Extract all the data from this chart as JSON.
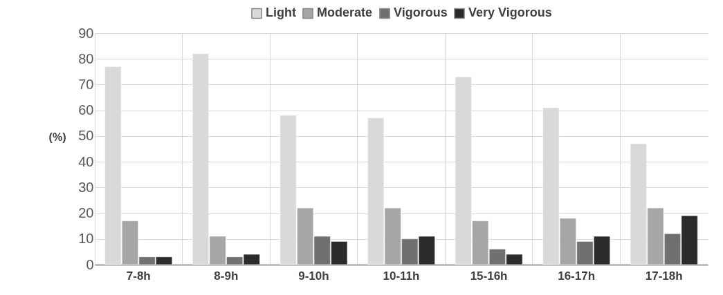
{
  "chart_data": {
    "type": "bar",
    "ylabel": "(%)",
    "categories": [
      "7-8h",
      "8-9h",
      "9-10h",
      "10-11h",
      "15-16h",
      "16-17h",
      "17-18h"
    ],
    "series": [
      {
        "name": "Light",
        "color": "#d9d9d9",
        "values": [
          77,
          82,
          58,
          57,
          73,
          61,
          47
        ]
      },
      {
        "name": "Moderate",
        "color": "#a6a6a6",
        "values": [
          17,
          11,
          22,
          22,
          17,
          18,
          22
        ]
      },
      {
        "name": "Vigorous",
        "color": "#707070",
        "values": [
          3,
          3,
          11,
          10,
          6,
          9,
          12
        ]
      },
      {
        "name": "Very Vigorous",
        "color": "#2b2b2b",
        "values": [
          3,
          4,
          9,
          11,
          4,
          11,
          19
        ]
      }
    ],
    "ylim": [
      0,
      90
    ],
    "yticks": [
      0,
      10,
      20,
      30,
      40,
      50,
      60,
      70,
      80,
      90
    ],
    "grid": true,
    "legend": "top"
  }
}
